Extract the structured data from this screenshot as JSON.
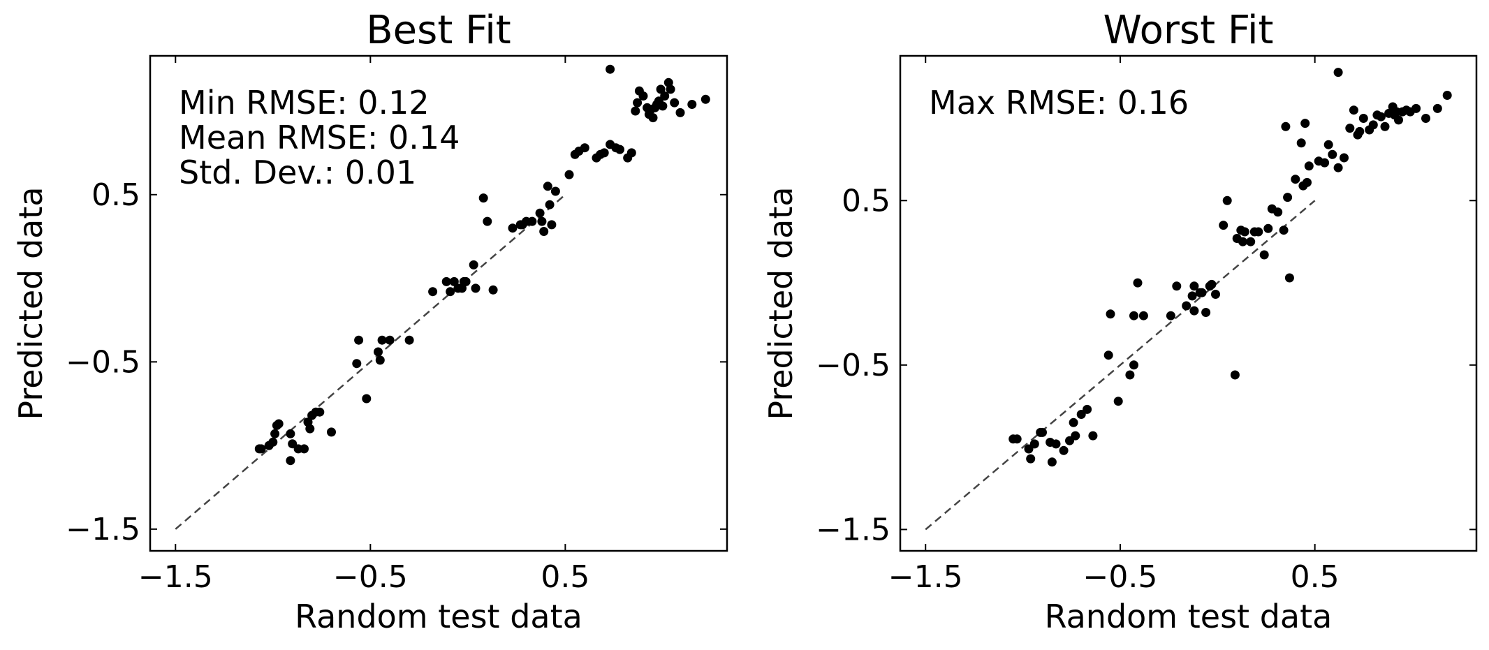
{
  "chart_data": [
    {
      "type": "scatter",
      "title": "Best Fit",
      "xlabel": "Random test data",
      "ylabel": "Predicted data",
      "xlim": [
        -1.63,
        1.33
      ],
      "ylim": [
        -1.63,
        1.33
      ],
      "xticks": [
        -1.5,
        -0.5,
        0.5
      ],
      "xtick_labels": [
        "−1.5",
        "−0.5",
        "0.5"
      ],
      "yticks": [
        -1.5,
        -0.5,
        0.5
      ],
      "ytick_labels": [
        "−1.5",
        "−0.5",
        "0.5"
      ],
      "grid": false,
      "reference_line": {
        "x": [
          -1.5,
          0.5
        ],
        "y": [
          -1.5,
          0.5
        ],
        "style": "dashed"
      },
      "annotations": [
        "Min RMSE: 0.12",
        "Mean RMSE: 0.14",
        "Std. Dev.: 0.01"
      ],
      "points": [
        [
          -1.07,
          -1.02
        ],
        [
          -1.06,
          -1.02
        ],
        [
          -1.02,
          -1.0
        ],
        [
          -1.0,
          -0.98
        ],
        [
          -0.99,
          -0.93
        ],
        [
          -0.98,
          -0.88
        ],
        [
          -0.97,
          -0.87
        ],
        [
          -0.91,
          -1.09
        ],
        [
          -0.91,
          -0.93
        ],
        [
          -0.9,
          -0.99
        ],
        [
          -0.87,
          -1.02
        ],
        [
          -0.84,
          -1.02
        ],
        [
          -0.82,
          -0.86
        ],
        [
          -0.81,
          -0.9
        ],
        [
          -0.8,
          -0.82
        ],
        [
          -0.78,
          -0.8
        ],
        [
          -0.76,
          -0.8
        ],
        [
          -0.7,
          -0.92
        ],
        [
          -0.57,
          -0.51
        ],
        [
          -0.56,
          -0.37
        ],
        [
          -0.52,
          -0.72
        ],
        [
          -0.46,
          -0.44
        ],
        [
          -0.45,
          -0.49
        ],
        [
          -0.44,
          -0.37
        ],
        [
          -0.4,
          -0.37
        ],
        [
          -0.3,
          -0.37
        ],
        [
          -0.18,
          -0.08
        ],
        [
          -0.11,
          -0.02
        ],
        [
          -0.09,
          -0.08
        ],
        [
          -0.07,
          -0.02
        ],
        [
          -0.05,
          -0.06
        ],
        [
          -0.03,
          -0.06
        ],
        [
          -0.02,
          -0.02
        ],
        [
          -0.01,
          -0.02
        ],
        [
          0.03,
          0.08
        ],
        [
          0.04,
          -0.06
        ],
        [
          0.08,
          0.48
        ],
        [
          0.1,
          0.34
        ],
        [
          0.13,
          -0.07
        ],
        [
          0.23,
          0.3
        ],
        [
          0.27,
          0.32
        ],
        [
          0.28,
          0.32
        ],
        [
          0.3,
          0.34
        ],
        [
          0.33,
          0.34
        ],
        [
          0.37,
          0.39
        ],
        [
          0.38,
          0.34
        ],
        [
          0.39,
          0.28
        ],
        [
          0.41,
          0.55
        ],
        [
          0.42,
          0.44
        ],
        [
          0.43,
          0.32
        ],
        [
          0.45,
          0.52
        ],
        [
          0.52,
          0.62
        ],
        [
          0.55,
          0.74
        ],
        [
          0.57,
          0.76
        ],
        [
          0.6,
          0.78
        ],
        [
          0.66,
          0.72
        ],
        [
          0.68,
          0.74
        ],
        [
          0.7,
          0.75
        ],
        [
          0.73,
          0.8
        ],
        [
          0.76,
          0.78
        ],
        [
          0.78,
          0.77
        ],
        [
          0.82,
          0.72
        ],
        [
          0.84,
          0.75
        ],
        [
          0.86,
          1.0
        ],
        [
          0.87,
          1.05
        ],
        [
          0.88,
          1.12
        ],
        [
          0.9,
          1.09
        ],
        [
          0.92,
          1.02
        ],
        [
          0.93,
          0.98
        ],
        [
          0.94,
          1.01
        ],
        [
          0.95,
          0.96
        ],
        [
          0.96,
          1.02
        ],
        [
          0.97,
          1.04
        ],
        [
          0.98,
          1.06
        ],
        [
          0.99,
          1.13
        ],
        [
          1.0,
          1.03
        ],
        [
          1.01,
          1.09
        ],
        [
          1.03,
          1.17
        ],
        [
          1.04,
          1.13
        ],
        [
          1.06,
          1.05
        ],
        [
          1.09,
          0.99
        ],
        [
          1.15,
          1.04
        ],
        [
          1.22,
          1.07
        ],
        [
          0.73,
          1.25
        ]
      ]
    },
    {
      "type": "scatter",
      "title": "Worst Fit",
      "xlabel": "Random test data",
      "ylabel": "Predicted data",
      "xlim": [
        -1.63,
        1.33
      ],
      "ylim": [
        -1.63,
        1.38
      ],
      "xticks": [
        -1.5,
        -0.5,
        0.5
      ],
      "xtick_labels": [
        "−1.5",
        "−0.5",
        "0.5"
      ],
      "yticks": [
        -1.5,
        -0.5,
        0.5
      ],
      "ytick_labels": [
        "−1.5",
        "−0.5",
        "0.5"
      ],
      "grid": false,
      "reference_line": {
        "x": [
          -1.5,
          0.5
        ],
        "y": [
          -1.5,
          0.5
        ],
        "style": "dashed"
      },
      "annotations": [
        "Max RMSE: 0.16"
      ],
      "points": [
        [
          -1.05,
          -0.95
        ],
        [
          -1.03,
          -0.95
        ],
        [
          -0.97,
          -1.01
        ],
        [
          -0.96,
          -1.07
        ],
        [
          -0.94,
          -0.98
        ],
        [
          -0.91,
          -0.91
        ],
        [
          -0.9,
          -0.91
        ],
        [
          -0.86,
          -0.97
        ],
        [
          -0.85,
          -1.09
        ],
        [
          -0.83,
          -0.98
        ],
        [
          -0.79,
          -1.02
        ],
        [
          -0.76,
          -0.96
        ],
        [
          -0.74,
          -0.85
        ],
        [
          -0.73,
          -0.93
        ],
        [
          -0.7,
          -0.8
        ],
        [
          -0.67,
          -0.77
        ],
        [
          -0.64,
          -0.93
        ],
        [
          -0.56,
          -0.44
        ],
        [
          -0.55,
          -0.19
        ],
        [
          -0.51,
          -0.72
        ],
        [
          -0.45,
          -0.56
        ],
        [
          -0.43,
          -0.5
        ],
        [
          -0.43,
          -0.2
        ],
        [
          -0.38,
          -0.2
        ],
        [
          -0.24,
          -0.2
        ],
        [
          -0.21,
          -0.02
        ],
        [
          -0.16,
          -0.14
        ],
        [
          -0.13,
          -0.08
        ],
        [
          -0.12,
          -0.02
        ],
        [
          -0.09,
          -0.06
        ],
        [
          -0.08,
          -0.06
        ],
        [
          -0.06,
          -0.18
        ],
        [
          -0.04,
          -0.02
        ],
        [
          -0.03,
          -0.01
        ],
        [
          -0.01,
          -0.07
        ],
        [
          0.03,
          0.35
        ],
        [
          0.05,
          0.5
        ],
        [
          0.1,
          0.27
        ],
        [
          0.12,
          0.32
        ],
        [
          0.13,
          0.25
        ],
        [
          0.14,
          0.31
        ],
        [
          0.17,
          0.25
        ],
        [
          0.19,
          0.31
        ],
        [
          0.21,
          0.31
        ],
        [
          0.24,
          0.17
        ],
        [
          0.26,
          0.33
        ],
        [
          0.28,
          0.45
        ],
        [
          0.31,
          0.43
        ],
        [
          0.34,
          0.32
        ],
        [
          0.4,
          0.63
        ],
        [
          0.43,
          0.85
        ],
        [
          0.44,
          0.59
        ],
        [
          0.46,
          0.61
        ],
        [
          0.47,
          0.71
        ],
        [
          0.52,
          0.74
        ],
        [
          0.55,
          0.73
        ],
        [
          0.57,
          0.84
        ],
        [
          0.59,
          0.78
        ],
        [
          0.62,
          0.7
        ],
        [
          0.65,
          0.76
        ],
        [
          0.68,
          0.94
        ],
        [
          0.7,
          1.05
        ],
        [
          0.72,
          0.9
        ],
        [
          0.73,
          0.92
        ],
        [
          0.75,
          1.0
        ],
        [
          0.78,
          0.93
        ],
        [
          0.8,
          0.96
        ],
        [
          0.82,
          1.02
        ],
        [
          0.84,
          1.01
        ],
        [
          0.86,
          0.95
        ],
        [
          0.88,
          1.03
        ],
        [
          0.9,
          1.07
        ],
        [
          0.91,
          1.02
        ],
        [
          0.92,
          1.04
        ],
        [
          0.93,
          0.99
        ],
        [
          0.95,
          1.04
        ],
        [
          0.97,
          1.05
        ],
        [
          0.99,
          1.04
        ],
        [
          1.02,
          1.06
        ],
        [
          1.07,
          1.0
        ],
        [
          1.13,
          1.06
        ],
        [
          1.18,
          1.14
        ],
        [
          0.35,
          0.95
        ],
        [
          -0.41,
          0.0
        ],
        [
          0.09,
          -0.56
        ],
        [
          -0.12,
          -0.17
        ],
        [
          0.37,
          0.03
        ],
        [
          0.62,
          1.28
        ],
        [
          0.36,
          0.52
        ],
        [
          0.45,
          0.97
        ]
      ]
    }
  ]
}
